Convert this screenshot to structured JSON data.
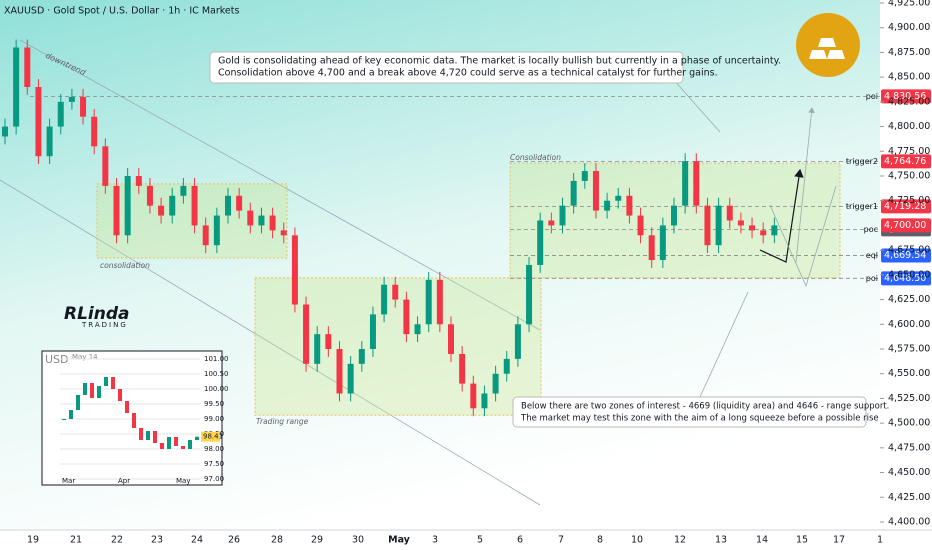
{
  "chart_data": {
    "type": "candlestick",
    "title": "XAUUSD · Gold Spot / U.S. Dollar · 1h · IC Markets",
    "up_color": "#089981",
    "down_color": "#f23645",
    "ylim": [
      4400,
      4925
    ],
    "yticks": [
      {
        "value": 4400,
        "label": "4,400.00"
      },
      {
        "value": 4425,
        "label": "4,425.00"
      },
      {
        "value": 4450,
        "label": "4,450.00"
      },
      {
        "value": 4475,
        "label": "4,475.00"
      },
      {
        "value": 4500,
        "label": "4,500.00"
      },
      {
        "value": 4525,
        "label": "4,525.00"
      },
      {
        "value": 4550,
        "label": "4,550.00"
      },
      {
        "value": 4575,
        "label": "4,575.00"
      },
      {
        "value": 4600,
        "label": "4,600.00"
      },
      {
        "value": 4625,
        "label": "4,625.00"
      },
      {
        "value": 4650,
        "label": "4,650.00"
      },
      {
        "value": 4675,
        "label": "4,675.00"
      },
      {
        "value": 4725,
        "label": "4,725.00"
      },
      {
        "value": 4750,
        "label": "4,750.00"
      },
      {
        "value": 4775,
        "label": "4,775.00"
      },
      {
        "value": 4800,
        "label": "4,800.00"
      },
      {
        "value": 4825,
        "label": "4,825.00"
      },
      {
        "value": 4850,
        "label": "4,850.00"
      },
      {
        "value": 4875,
        "label": "4,875.00"
      },
      {
        "value": 4900,
        "label": "4,900.00"
      },
      {
        "value": 4925,
        "label": "4,925.00"
      }
    ],
    "x_labels": [
      "19",
      "21",
      "22",
      "23",
      "24",
      "26",
      "28",
      "29",
      "30",
      "May",
      "3",
      "5",
      "6",
      "7",
      "8",
      "10",
      "12",
      "13",
      "14",
      "15",
      "17",
      "1"
    ],
    "candles": [
      [
        4790,
        4808,
        4782,
        4800
      ],
      [
        4800,
        4888,
        4792,
        4880
      ],
      [
        4880,
        4888,
        4832,
        4840
      ],
      [
        4840,
        4848,
        4762,
        4770
      ],
      [
        4770,
        4808,
        4762,
        4800
      ],
      [
        4800,
        4833,
        4792,
        4825
      ],
      [
        4825,
        4838,
        4817,
        4830
      ],
      [
        4830,
        4838,
        4802,
        4810
      ],
      [
        4810,
        4818,
        4772,
        4780
      ],
      [
        4780,
        4788,
        4732,
        4740
      ],
      [
        4740,
        4748,
        4682,
        4690
      ],
      [
        4690,
        4758,
        4682,
        4750
      ],
      [
        4750,
        4758,
        4732,
        4740
      ],
      [
        4740,
        4748,
        4712,
        4720
      ],
      [
        4720,
        4728,
        4702,
        4710
      ],
      [
        4710,
        4738,
        4702,
        4730
      ],
      [
        4730,
        4748,
        4722,
        4740
      ],
      [
        4740,
        4748,
        4692,
        4700
      ],
      [
        4700,
        4708,
        4672,
        4680
      ],
      [
        4680,
        4718,
        4672,
        4710
      ],
      [
        4710,
        4738,
        4702,
        4730
      ],
      [
        4730,
        4738,
        4707,
        4715
      ],
      [
        4715,
        4723,
        4692,
        4700
      ],
      [
        4700,
        4718,
        4692,
        4710
      ],
      [
        4710,
        4718,
        4687,
        4695
      ],
      [
        4695,
        4703,
        4682,
        4690
      ],
      [
        4690,
        4698,
        4612,
        4620
      ],
      [
        4620,
        4628,
        4552,
        4560
      ],
      [
        4560,
        4598,
        4552,
        4590
      ],
      [
        4590,
        4598,
        4567,
        4575
      ],
      [
        4575,
        4583,
        4522,
        4530
      ],
      [
        4530,
        4568,
        4522,
        4560
      ],
      [
        4560,
        4583,
        4552,
        4575
      ],
      [
        4575,
        4618,
        4567,
        4610
      ],
      [
        4610,
        4648,
        4602,
        4640
      ],
      [
        4640,
        4648,
        4617,
        4625
      ],
      [
        4625,
        4633,
        4582,
        4590
      ],
      [
        4590,
        4608,
        4582,
        4600
      ],
      [
        4600,
        4653,
        4592,
        4645
      ],
      [
        4645,
        4653,
        4592,
        4600
      ],
      [
        4600,
        4608,
        4562,
        4570
      ],
      [
        4570,
        4578,
        4532,
        4540
      ],
      [
        4540,
        4548,
        4507,
        4515
      ],
      [
        4515,
        4538,
        4507,
        4530
      ],
      [
        4530,
        4558,
        4522,
        4550
      ],
      [
        4550,
        4573,
        4542,
        4565
      ],
      [
        4565,
        4608,
        4557,
        4600
      ],
      [
        4600,
        4668,
        4592,
        4660
      ],
      [
        4660,
        4713,
        4652,
        4705
      ],
      [
        4705,
        4713,
        4692,
        4700
      ],
      [
        4700,
        4728,
        4692,
        4720
      ],
      [
        4720,
        4753,
        4712,
        4745
      ],
      [
        4745,
        4763,
        4737,
        4755
      ],
      [
        4755,
        4763,
        4707,
        4715
      ],
      [
        4715,
        4733,
        4707,
        4725
      ],
      [
        4725,
        4738,
        4717,
        4730
      ],
      [
        4730,
        4738,
        4702,
        4710
      ],
      [
        4710,
        4718,
        4682,
        4690
      ],
      [
        4690,
        4698,
        4657,
        4665
      ],
      [
        4665,
        4708,
        4657,
        4700
      ],
      [
        4700,
        4728,
        4692,
        4720
      ],
      [
        4720,
        4773,
        4712,
        4765
      ],
      [
        4765,
        4773,
        4712,
        4720
      ],
      [
        4720,
        4728,
        4672,
        4680
      ],
      [
        4680,
        4728,
        4672,
        4720
      ],
      [
        4720,
        4728,
        4697,
        4705
      ],
      [
        4705,
        4713,
        4692,
        4700
      ],
      [
        4700,
        4708,
        4687,
        4695
      ],
      [
        4695,
        4703,
        4682,
        4690
      ],
      [
        4690,
        4708,
        4682,
        4700
      ]
    ],
    "levels": [
      {
        "label": "poi",
        "price": {
          "value": 4830.56,
          "label": "4,830.56"
        },
        "color": "#f23645"
      },
      {
        "label": "trigger2",
        "price": {
          "value": 4764.76,
          "label": "4,764.76"
        },
        "color": "#f23645"
      },
      {
        "label": "trigger1",
        "price": {
          "value": 4719.28,
          "label": "4,719.28"
        },
        "color": "#f23645"
      },
      {
        "label": "poc",
        "price": {
          "value": 4695.98,
          "label": "4,695.98"
        },
        "color": "#5d606b"
      },
      {
        "label": "eql",
        "price": {
          "value": 4669.54,
          "label": "4,669.54"
        },
        "color": "#2962ff"
      },
      {
        "label": "poi",
        "price": {
          "value": 4646.5,
          "label": "4,646.50"
        },
        "color": "#2962ff"
      }
    ],
    "last_price": {
      "value": 4700,
      "label": "4,700.00",
      "color": "#f23645"
    },
    "zones": [
      {
        "label": "consolidation",
        "range": [
          4667,
          4742
        ]
      },
      {
        "label": "Trading range",
        "range": [
          4508,
          4647
        ]
      },
      {
        "label": "Consolidation",
        "range": [
          4647,
          4763
        ]
      }
    ],
    "trend_label": "downtrend",
    "annotations": [
      [
        "Gold is consolidating ahead of key economic data. The market is locally bullish but currently in a phase of uncertainty.",
        "Consolidation above 4,700 and a break above 4,720 could serve as a technical catalyst for further gains."
      ],
      [
        "Below there are two zones of interest - 4669 (liquidity area) and 4646 - range support.",
        "The market may test this zone with the aim of a long squeeze before a possible rise"
      ]
    ],
    "logo": {
      "name": "RLinda",
      "sub": "TRADING"
    },
    "inset": {
      "title": "USD",
      "subtitle": "May 14",
      "ylim": [
        96.8,
        101.2
      ],
      "yticks": [
        {
          "value": 97,
          "label": "97.00"
        },
        {
          "value": 97.5,
          "label": "97.50"
        },
        {
          "value": 98,
          "label": "98.00"
        },
        {
          "value": 98.5,
          "label": "98.50"
        },
        {
          "value": 99,
          "label": "99.00"
        },
        {
          "value": 99.5,
          "label": "99.50"
        },
        {
          "value": 100,
          "label": "100.00"
        },
        {
          "value": 100.5,
          "label": "100.50"
        },
        {
          "value": 101,
          "label": "101.00"
        }
      ],
      "months": [
        "Mar",
        "Apr",
        "May"
      ],
      "values": [
        99.0,
        99.3,
        99.8,
        100.2,
        99.7,
        100.1,
        100.4,
        100.0,
        99.6,
        99.2,
        98.7,
        98.3,
        98.6,
        98.2,
        98.0,
        98.4,
        98.1,
        98.0,
        98.3,
        98.41
      ],
      "last": {
        "value": 98.41,
        "label": "98.41"
      }
    }
  }
}
